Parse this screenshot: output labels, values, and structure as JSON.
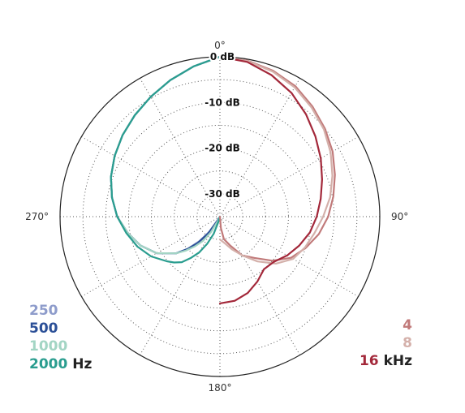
{
  "chart_data": {
    "type": "polar-line",
    "angle_labels": [
      "0°",
      "90°",
      "180°",
      "270°"
    ],
    "angle_values": [
      0,
      90,
      180,
      270
    ],
    "radial_labels": [
      "0 dB",
      "-10 dB",
      "-20 dB",
      "-30 dB"
    ],
    "radial_values": [
      0,
      -10,
      -20,
      -30
    ],
    "rlim": [
      -35,
      0
    ],
    "grid": true,
    "legend_left": {
      "entries": [
        "250",
        "500",
        "1000",
        "2000"
      ],
      "unit": "Hz",
      "colors": [
        "#8e9ccb",
        "#2b4f97",
        "#a3d5c4",
        "#2a9d8f"
      ]
    },
    "legend_right": {
      "entries": [
        "4",
        "8",
        "16"
      ],
      "unit": "kHz",
      "colors": [
        "#c17a7a",
        "#d4b0aa",
        "#a3283a"
      ]
    },
    "series": [
      {
        "name": "250",
        "color": "#8e9ccb",
        "points": [
          [
            180,
            -45
          ],
          [
            205,
            -38
          ],
          [
            210,
            -35
          ],
          [
            215,
            -31
          ],
          [
            220,
            -28
          ],
          [
            225,
            -25
          ],
          [
            230,
            -22.5
          ],
          [
            240,
            -19
          ],
          [
            250,
            -16.5
          ],
          [
            260,
            -14.5
          ],
          [
            270,
            -12.5
          ],
          [
            280,
            -11
          ],
          [
            290,
            -9.6
          ],
          [
            300,
            -8.4
          ],
          [
            310,
            -7.2
          ],
          [
            320,
            -6
          ],
          [
            330,
            -4.7
          ],
          [
            340,
            -3.2
          ],
          [
            350,
            -1.6
          ],
          [
            360,
            0
          ]
        ]
      },
      {
        "name": "500",
        "color": "#2b4f97",
        "points": [
          [
            180,
            -45
          ],
          [
            205,
            -37
          ],
          [
            210,
            -34
          ],
          [
            215,
            -30.5
          ],
          [
            220,
            -27.5
          ],
          [
            225,
            -25
          ],
          [
            230,
            -22.5
          ],
          [
            240,
            -19
          ],
          [
            250,
            -16.5
          ],
          [
            260,
            -14.5
          ],
          [
            270,
            -12.5
          ],
          [
            280,
            -11
          ],
          [
            290,
            -9.6
          ],
          [
            300,
            -8.4
          ],
          [
            310,
            -7.2
          ],
          [
            320,
            -6
          ],
          [
            330,
            -4.7
          ],
          [
            340,
            -3.2
          ],
          [
            350,
            -1.6
          ],
          [
            360,
            0
          ]
        ]
      },
      {
        "name": "1000",
        "color": "#a3d5c4",
        "points": [
          [
            180,
            -45
          ],
          [
            200,
            -37
          ],
          [
            205,
            -34
          ],
          [
            210,
            -31
          ],
          [
            215,
            -28.5
          ],
          [
            220,
            -26.5
          ],
          [
            225,
            -24.5
          ],
          [
            230,
            -22.5
          ],
          [
            240,
            -19
          ],
          [
            250,
            -16.5
          ],
          [
            260,
            -14.5
          ],
          [
            270,
            -12.5
          ],
          [
            280,
            -11
          ],
          [
            290,
            -9.6
          ],
          [
            300,
            -8.4
          ],
          [
            310,
            -7.2
          ],
          [
            320,
            -6
          ],
          [
            330,
            -4.7
          ],
          [
            340,
            -3.2
          ],
          [
            350,
            -1.6
          ],
          [
            360,
            0
          ]
        ]
      },
      {
        "name": "2000",
        "color": "#2a9d8f",
        "points": [
          [
            180,
            -45
          ],
          [
            195,
            -34
          ],
          [
            200,
            -31
          ],
          [
            205,
            -28.5
          ],
          [
            210,
            -26
          ],
          [
            215,
            -24
          ],
          [
            220,
            -22
          ],
          [
            225,
            -20.8
          ],
          [
            230,
            -19.8
          ],
          [
            240,
            -17.6
          ],
          [
            250,
            -15.8
          ],
          [
            260,
            -14.2
          ],
          [
            270,
            -12.5
          ],
          [
            280,
            -11
          ],
          [
            290,
            -9.6
          ],
          [
            300,
            -8.4
          ],
          [
            310,
            -7.2
          ],
          [
            320,
            -6
          ],
          [
            330,
            -4.7
          ],
          [
            340,
            -3.2
          ],
          [
            350,
            -1.6
          ],
          [
            360,
            0
          ]
        ]
      },
      {
        "name": "4",
        "color": "#c17a7a",
        "points": [
          [
            0,
            0
          ],
          [
            10,
            -0.3
          ],
          [
            20,
            -1
          ],
          [
            30,
            -2
          ],
          [
            40,
            -3.5
          ],
          [
            50,
            -5
          ],
          [
            60,
            -6.5
          ],
          [
            70,
            -8.2
          ],
          [
            80,
            -9.8
          ],
          [
            90,
            -11.3
          ],
          [
            100,
            -13
          ],
          [
            110,
            -15
          ],
          [
            120,
            -17
          ],
          [
            130,
            -20
          ],
          [
            140,
            -23.2
          ],
          [
            150,
            -25.2
          ],
          [
            160,
            -28.2
          ],
          [
            170,
            -30
          ],
          [
            175,
            -32.5
          ],
          [
            180,
            -36
          ]
        ]
      },
      {
        "name": "8",
        "color": "#d4b0aa",
        "points": [
          [
            0,
            0
          ],
          [
            10,
            -0.4
          ],
          [
            20,
            -1.2
          ],
          [
            30,
            -2.3
          ],
          [
            40,
            -3.8
          ],
          [
            50,
            -5.3
          ],
          [
            60,
            -7
          ],
          [
            70,
            -8.8
          ],
          [
            80,
            -10.5
          ],
          [
            90,
            -12.4
          ],
          [
            100,
            -14
          ],
          [
            110,
            -15.2
          ],
          [
            120,
            -16.5
          ],
          [
            130,
            -19
          ],
          [
            140,
            -22.2
          ],
          [
            150,
            -25.2
          ],
          [
            160,
            -27.4
          ],
          [
            170,
            -29.1
          ],
          [
            180,
            -30
          ]
        ]
      },
      {
        "name": "16",
        "color": "#a3283a",
        "points": [
          [
            0,
            0
          ],
          [
            10,
            -0.6
          ],
          [
            20,
            -2
          ],
          [
            30,
            -3.7
          ],
          [
            40,
            -5.7
          ],
          [
            50,
            -7.7
          ],
          [
            60,
            -9.5
          ],
          [
            70,
            -11.2
          ],
          [
            80,
            -12.6
          ],
          [
            90,
            -13.8
          ],
          [
            100,
            -15
          ],
          [
            110,
            -16.5
          ],
          [
            120,
            -18
          ],
          [
            130,
            -19.6
          ],
          [
            140,
            -20
          ],
          [
            150,
            -18.6
          ],
          [
            160,
            -17.2
          ],
          [
            170,
            -16.3
          ],
          [
            180,
            -16
          ]
        ]
      }
    ]
  }
}
